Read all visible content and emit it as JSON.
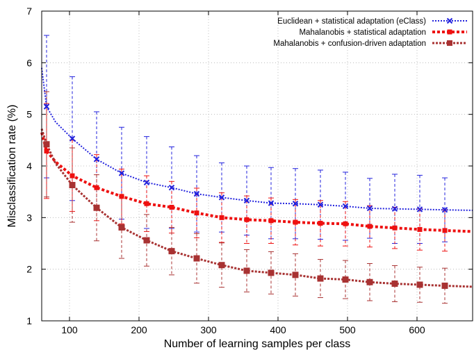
{
  "chart_data": {
    "type": "line",
    "title": "",
    "xlabel": "Number of learning samples per class",
    "ylabel": "Misclassification rate (%)",
    "xlim": [
      60,
      680
    ],
    "ylim": [
      1,
      7
    ],
    "xticks": [
      100,
      200,
      300,
      400,
      500,
      600
    ],
    "yticks": [
      1,
      2,
      3,
      4,
      5,
      6,
      7
    ],
    "grid": true,
    "legend_position": "top-right",
    "series": [
      {
        "name": "Euclidean + statistical adaptation (eClass)",
        "color": "#2222dd",
        "line_style": "dotted",
        "marker": "x",
        "curve_x": [
          60,
          67,
          80,
          104,
          139,
          175,
          211,
          247,
          283,
          319,
          355,
          390,
          425,
          461,
          497,
          532,
          568,
          604,
          640,
          680
        ],
        "curve_y": [
          5.9,
          5.15,
          4.85,
          4.53,
          4.13,
          3.86,
          3.68,
          3.58,
          3.46,
          3.39,
          3.33,
          3.28,
          3.27,
          3.25,
          3.22,
          3.18,
          3.17,
          3.16,
          3.15,
          3.14
        ],
        "points": [
          {
            "x": 67,
            "y": 5.15,
            "low": 3.77,
            "high": 6.53
          },
          {
            "x": 104,
            "y": 4.53,
            "low": 3.33,
            "high": 5.73
          },
          {
            "x": 139,
            "y": 4.13,
            "low": 3.21,
            "high": 5.05
          },
          {
            "x": 175,
            "y": 3.86,
            "low": 2.97,
            "high": 4.75
          },
          {
            "x": 211,
            "y": 3.68,
            "low": 2.79,
            "high": 4.57
          },
          {
            "x": 247,
            "y": 3.58,
            "low": 2.79,
            "high": 4.37
          },
          {
            "x": 283,
            "y": 3.46,
            "low": 2.72,
            "high": 4.2
          },
          {
            "x": 319,
            "y": 3.39,
            "low": 2.72,
            "high": 4.06
          },
          {
            "x": 355,
            "y": 3.33,
            "low": 2.66,
            "high": 4.0
          },
          {
            "x": 390,
            "y": 3.28,
            "low": 2.59,
            "high": 3.97
          },
          {
            "x": 425,
            "y": 3.27,
            "low": 2.59,
            "high": 3.95
          },
          {
            "x": 461,
            "y": 3.25,
            "low": 2.58,
            "high": 3.92
          },
          {
            "x": 497,
            "y": 3.22,
            "low": 2.56,
            "high": 3.88
          },
          {
            "x": 532,
            "y": 3.18,
            "low": 2.6,
            "high": 3.76
          },
          {
            "x": 568,
            "y": 3.17,
            "low": 2.5,
            "high": 3.84
          },
          {
            "x": 604,
            "y": 3.16,
            "low": 2.5,
            "high": 3.82
          },
          {
            "x": 640,
            "y": 3.15,
            "low": 2.53,
            "high": 3.77
          }
        ]
      },
      {
        "name": "Mahalanobis + statistical adaptation",
        "color": "#ee1111",
        "line_style": "dashed",
        "marker": "square",
        "curve_x": [
          60,
          67,
          80,
          104,
          139,
          175,
          211,
          247,
          283,
          319,
          355,
          390,
          425,
          461,
          497,
          532,
          568,
          604,
          640,
          680
        ],
        "curve_y": [
          4.65,
          4.29,
          4.08,
          3.81,
          3.58,
          3.41,
          3.27,
          3.2,
          3.09,
          3.0,
          2.96,
          2.94,
          2.91,
          2.89,
          2.88,
          2.83,
          2.8,
          2.77,
          2.75,
          2.73
        ],
        "points": [
          {
            "x": 67,
            "y": 4.29,
            "low": 3.37,
            "high": 5.21
          },
          {
            "x": 104,
            "y": 3.81,
            "low": 3.12,
            "high": 4.5
          },
          {
            "x": 139,
            "y": 3.58,
            "low": 2.94,
            "high": 4.22
          },
          {
            "x": 175,
            "y": 3.41,
            "low": 2.88,
            "high": 3.94
          },
          {
            "x": 211,
            "y": 3.27,
            "low": 2.73,
            "high": 3.81
          },
          {
            "x": 247,
            "y": 3.2,
            "low": 2.7,
            "high": 3.7
          },
          {
            "x": 283,
            "y": 3.09,
            "low": 2.61,
            "high": 3.57
          },
          {
            "x": 319,
            "y": 3.0,
            "low": 2.52,
            "high": 3.48
          },
          {
            "x": 355,
            "y": 2.96,
            "low": 2.5,
            "high": 3.42
          },
          {
            "x": 390,
            "y": 2.94,
            "low": 2.5,
            "high": 3.38
          },
          {
            "x": 425,
            "y": 2.91,
            "low": 2.47,
            "high": 3.35
          },
          {
            "x": 461,
            "y": 2.89,
            "low": 2.45,
            "high": 3.33
          },
          {
            "x": 497,
            "y": 2.88,
            "low": 2.45,
            "high": 3.31
          },
          {
            "x": 532,
            "y": 2.83,
            "low": 2.43,
            "high": 3.23
          },
          {
            "x": 568,
            "y": 2.8,
            "low": 2.4,
            "high": 3.2
          },
          {
            "x": 604,
            "y": 2.77,
            "low": 2.37,
            "high": 3.17
          },
          {
            "x": 640,
            "y": 2.75,
            "low": 2.35,
            "high": 3.15
          }
        ]
      },
      {
        "name": "Mahalanobis + confusion-driven adaptation",
        "color": "#a83232",
        "line_style": "dotted",
        "marker": "square",
        "curve_x": [
          60,
          67,
          80,
          104,
          139,
          175,
          211,
          247,
          283,
          319,
          355,
          390,
          425,
          461,
          497,
          532,
          568,
          604,
          640,
          680
        ],
        "curve_y": [
          4.72,
          4.42,
          4.05,
          3.63,
          3.19,
          2.81,
          2.56,
          2.35,
          2.21,
          2.08,
          1.97,
          1.93,
          1.89,
          1.82,
          1.8,
          1.75,
          1.72,
          1.7,
          1.68,
          1.66
        ],
        "points": [
          {
            "x": 67,
            "y": 4.42,
            "low": 3.4,
            "high": 5.44
          },
          {
            "x": 104,
            "y": 3.63,
            "low": 2.91,
            "high": 4.35
          },
          {
            "x": 139,
            "y": 3.19,
            "low": 2.55,
            "high": 3.83
          },
          {
            "x": 175,
            "y": 2.81,
            "low": 2.21,
            "high": 3.41
          },
          {
            "x": 211,
            "y": 2.56,
            "low": 2.06,
            "high": 3.06
          },
          {
            "x": 247,
            "y": 2.35,
            "low": 1.89,
            "high": 2.81
          },
          {
            "x": 283,
            "y": 2.21,
            "low": 1.73,
            "high": 2.69
          },
          {
            "x": 319,
            "y": 2.08,
            "low": 1.65,
            "high": 2.51
          },
          {
            "x": 355,
            "y": 1.97,
            "low": 1.56,
            "high": 2.38
          },
          {
            "x": 390,
            "y": 1.93,
            "low": 1.52,
            "high": 2.34
          },
          {
            "x": 425,
            "y": 1.89,
            "low": 1.48,
            "high": 2.3
          },
          {
            "x": 461,
            "y": 1.82,
            "low": 1.45,
            "high": 2.19
          },
          {
            "x": 497,
            "y": 1.8,
            "low": 1.43,
            "high": 2.17
          },
          {
            "x": 532,
            "y": 1.75,
            "low": 1.39,
            "high": 2.11
          },
          {
            "x": 568,
            "y": 1.72,
            "low": 1.37,
            "high": 2.07
          },
          {
            "x": 604,
            "y": 1.7,
            "low": 1.36,
            "high": 2.04
          },
          {
            "x": 640,
            "y": 1.68,
            "low": 1.34,
            "high": 2.02
          }
        ]
      }
    ]
  }
}
